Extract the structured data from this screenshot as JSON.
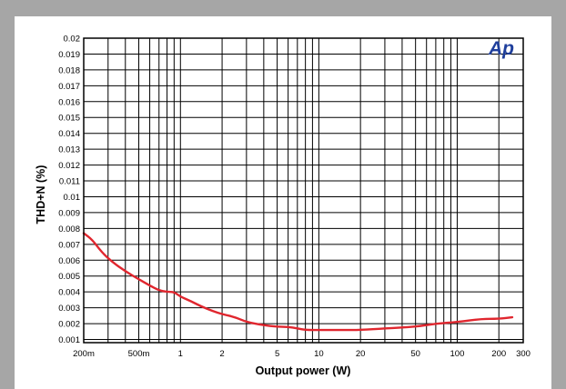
{
  "chart_data": {
    "type": "line",
    "title": "",
    "xlabel": "Output power (W)",
    "ylabel": "THD+N (%)",
    "x_scale": "log",
    "y_scale": "linear",
    "xlim": [
      0.2,
      300
    ],
    "ylim": [
      0.0008,
      0.02
    ],
    "grid": true,
    "x_tick_labels": [
      {
        "value": 0.2,
        "label": "200m"
      },
      {
        "value": 0.5,
        "label": "500m"
      },
      {
        "value": 1,
        "label": "1"
      },
      {
        "value": 2,
        "label": "2"
      },
      {
        "value": 5,
        "label": "5"
      },
      {
        "value": 10,
        "label": "10"
      },
      {
        "value": 20,
        "label": "20"
      },
      {
        "value": 50,
        "label": "50"
      },
      {
        "value": 100,
        "label": "100"
      },
      {
        "value": 200,
        "label": "200"
      },
      {
        "value": 300,
        "label": "300"
      }
    ],
    "x_grid_values": [
      0.2,
      0.3,
      0.4,
      0.5,
      0.6,
      0.7,
      0.8,
      0.9,
      1,
      2,
      3,
      4,
      5,
      6,
      7,
      8,
      9,
      10,
      20,
      30,
      40,
      50,
      60,
      70,
      80,
      90,
      100,
      200,
      300
    ],
    "y_tick_labels": [
      {
        "value": 0.001,
        "label": "0.001"
      },
      {
        "value": 0.002,
        "label": "0.002"
      },
      {
        "value": 0.003,
        "label": "0.003"
      },
      {
        "value": 0.004,
        "label": "0.004"
      },
      {
        "value": 0.005,
        "label": "0.005"
      },
      {
        "value": 0.006,
        "label": "0.006"
      },
      {
        "value": 0.007,
        "label": "0.007"
      },
      {
        "value": 0.008,
        "label": "0.008"
      },
      {
        "value": 0.009,
        "label": "0.009"
      },
      {
        "value": 0.01,
        "label": "0.01"
      },
      {
        "value": 0.011,
        "label": "0.011"
      },
      {
        "value": 0.012,
        "label": "0.012"
      },
      {
        "value": 0.013,
        "label": "0.013"
      },
      {
        "value": 0.014,
        "label": "0.014"
      },
      {
        "value": 0.015,
        "label": "0.015"
      },
      {
        "value": 0.016,
        "label": "0.016"
      },
      {
        "value": 0.017,
        "label": "0.017"
      },
      {
        "value": 0.018,
        "label": "0.018"
      },
      {
        "value": 0.019,
        "label": "0.019"
      },
      {
        "value": 0.02,
        "label": "0.02"
      }
    ],
    "series": [
      {
        "color": "#e0262e",
        "points": [
          [
            0.2,
            0.0077
          ],
          [
            0.23,
            0.0073
          ],
          [
            0.27,
            0.0065
          ],
          [
            0.32,
            0.0059
          ],
          [
            0.4,
            0.0053
          ],
          [
            0.5,
            0.0048
          ],
          [
            0.6,
            0.0044
          ],
          [
            0.7,
            0.0041
          ],
          [
            0.8,
            0.004
          ],
          [
            0.9,
            0.004
          ],
          [
            1.0,
            0.0037
          ],
          [
            1.2,
            0.0034
          ],
          [
            1.4,
            0.0031
          ],
          [
            1.7,
            0.0028
          ],
          [
            2.0,
            0.0026
          ],
          [
            2.5,
            0.0024
          ],
          [
            3.0,
            0.0021
          ],
          [
            4.0,
            0.0019
          ],
          [
            5.0,
            0.0018
          ],
          [
            6.0,
            0.0018
          ],
          [
            7.0,
            0.0017
          ],
          [
            8.0,
            0.0016
          ],
          [
            10,
            0.0016
          ],
          [
            15,
            0.0016
          ],
          [
            20,
            0.0016
          ],
          [
            30,
            0.0017
          ],
          [
            50,
            0.0018
          ],
          [
            70,
            0.002
          ],
          [
            100,
            0.0021
          ],
          [
            150,
            0.0023
          ],
          [
            200,
            0.0023
          ],
          [
            250,
            0.0024
          ]
        ]
      }
    ]
  },
  "logo": {
    "text": "Ap",
    "color": "#1f3f9c"
  }
}
